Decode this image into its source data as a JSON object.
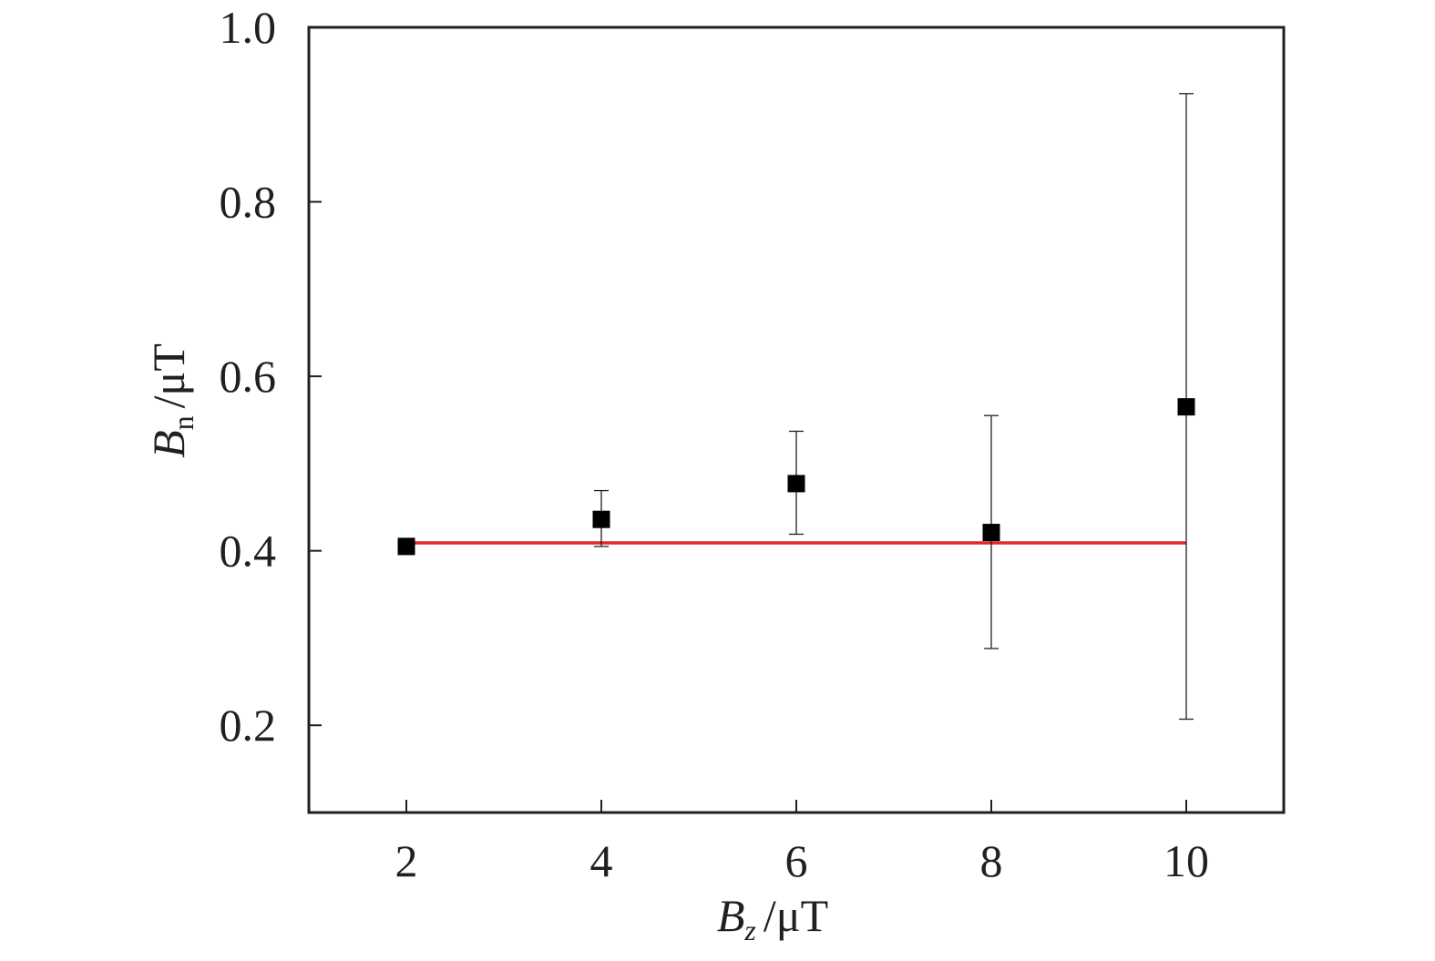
{
  "chart_data": {
    "type": "scatter",
    "xlabel": {
      "symbol": "B",
      "subscript": "z",
      "unit": "/μT"
    },
    "ylabel": {
      "symbol": "B",
      "subscript": "n",
      "unit": "/μT"
    },
    "xlim": [
      1,
      11
    ],
    "ylim": [
      0.1,
      1.0
    ],
    "x_ticks": [
      2,
      4,
      6,
      8,
      10
    ],
    "x_tick_labels": [
      "2",
      "4",
      "6",
      "8",
      "10"
    ],
    "y_ticks": [
      0.2,
      0.4,
      0.6,
      0.8,
      1.0
    ],
    "y_tick_labels": [
      "0.2",
      "0.4",
      "0.6",
      "0.8",
      "1.0"
    ],
    "grid": false,
    "series": [
      {
        "marker": "square",
        "color": "#000000",
        "points": [
          {
            "x": 2,
            "y": 0.405,
            "err_low": 0.405,
            "err_high": 0.405
          },
          {
            "x": 4,
            "y": 0.436,
            "err_low": 0.405,
            "err_high": 0.469
          },
          {
            "x": 6,
            "y": 0.477,
            "err_low": 0.419,
            "err_high": 0.537
          },
          {
            "x": 8,
            "y": 0.421,
            "err_low": 0.288,
            "err_high": 0.555
          },
          {
            "x": 10,
            "y": 0.565,
            "err_low": 0.207,
            "err_high": 0.924
          }
        ]
      }
    ],
    "fit_line": {
      "color": "#e0262b",
      "x": [
        2,
        10
      ],
      "y": [
        0.409,
        0.409
      ]
    }
  }
}
